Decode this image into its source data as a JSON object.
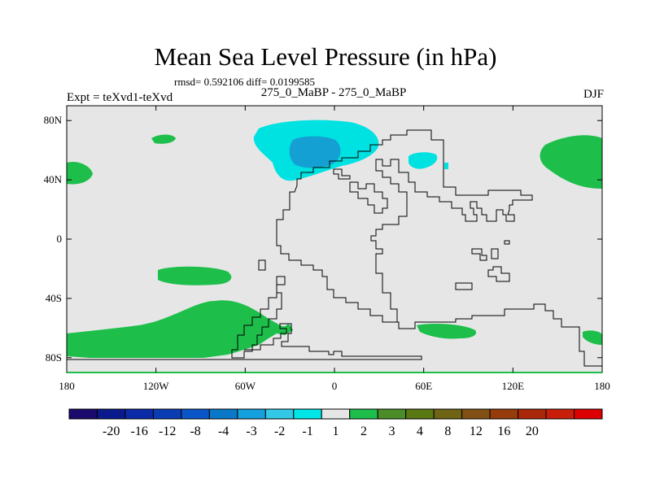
{
  "title": "Mean Sea Level Pressure (in hPa)",
  "stats": "rmsd= 0.592106 diff= 0.0199585",
  "expt_label": "Expt = teXvd1-teXvd",
  "comparison": "275_0_MaBP - 275_0_MaBP",
  "season": "DJF",
  "map": {
    "projection": "cylindrical equidistant",
    "lon_range": [
      -180,
      180
    ],
    "lat_range": [
      -90,
      90
    ],
    "x_ticks": [
      {
        "lon": -180,
        "label": "180"
      },
      {
        "lon": -120,
        "label": "120W"
      },
      {
        "lon": -60,
        "label": "60W"
      },
      {
        "lon": 0,
        "label": "0"
      },
      {
        "lon": 60,
        "label": "60E"
      },
      {
        "lon": 120,
        "label": "120E"
      },
      {
        "lon": 180,
        "label": "180"
      }
    ],
    "y_ticks": [
      {
        "lat": 80,
        "label": "80N"
      },
      {
        "lat": 40,
        "label": "40N"
      },
      {
        "lat": 0,
        "label": "0"
      },
      {
        "lat": -40,
        "label": "40S"
      },
      {
        "lat": -80,
        "label": "80S"
      }
    ],
    "background_color": "#e6e6e6"
  },
  "colorbar": {
    "colors": [
      "#1a0a6e",
      "#0a1a8c",
      "#0a2aa8",
      "#0a3cb4",
      "#0a56c8",
      "#0a78c8",
      "#14a0dc",
      "#32c8e6",
      "#00e6e6",
      "#e6e6e6",
      "#1ebe4b",
      "#4b8c28",
      "#5a7814",
      "#6e6414",
      "#825014",
      "#963c0a",
      "#aa280a",
      "#c81e0a",
      "#dc0000"
    ],
    "labels": [
      "-20",
      "-16",
      "-12",
      "-8",
      "-4",
      "-3",
      "-2",
      "-1",
      "1",
      "2",
      "3",
      "4",
      "8",
      "12",
      "16",
      "20"
    ]
  }
}
